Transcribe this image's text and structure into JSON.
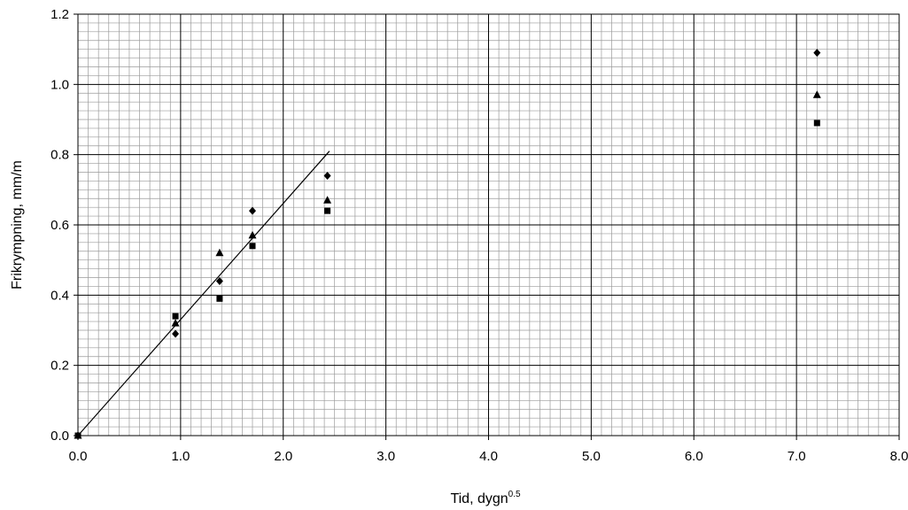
{
  "chart_data": {
    "type": "scatter",
    "title": "",
    "xlabel": "Tid, dygn",
    "xlabel_superscript": "0.5",
    "ylabel": "Frikrympning, mm/m",
    "xlim": [
      0,
      8
    ],
    "ylim": [
      0,
      1.2
    ],
    "x_ticks": [
      "0.0",
      "1.0",
      "2.0",
      "3.0",
      "4.0",
      "5.0",
      "6.0",
      "7.0",
      "8.0"
    ],
    "y_ticks": [
      "0.0",
      "0.2",
      "0.4",
      "0.6",
      "0.8",
      "1.0",
      "1.2"
    ],
    "grid": true,
    "minor_grid": true,
    "legend": "none",
    "series": [
      {
        "marker": "diamond",
        "color": "#000000",
        "x": [
          0.0,
          0.95,
          1.38,
          1.7,
          2.43,
          7.2
        ],
        "y": [
          0.0,
          0.29,
          0.44,
          0.64,
          0.74,
          1.09
        ]
      },
      {
        "marker": "triangle",
        "color": "#000000",
        "x": [
          0.0,
          0.95,
          1.38,
          1.7,
          2.43,
          7.2
        ],
        "y": [
          0.0,
          0.32,
          0.52,
          0.57,
          0.67,
          0.97
        ]
      },
      {
        "marker": "square",
        "color": "#000000",
        "x": [
          0.0,
          0.95,
          1.38,
          1.7,
          2.43,
          7.2
        ],
        "y": [
          0.0,
          0.34,
          0.39,
          0.54,
          0.64,
          0.89
        ]
      }
    ],
    "trendline": {
      "x": [
        0.0,
        2.45
      ],
      "y": [
        0.0,
        0.81
      ],
      "color": "#000000"
    }
  }
}
